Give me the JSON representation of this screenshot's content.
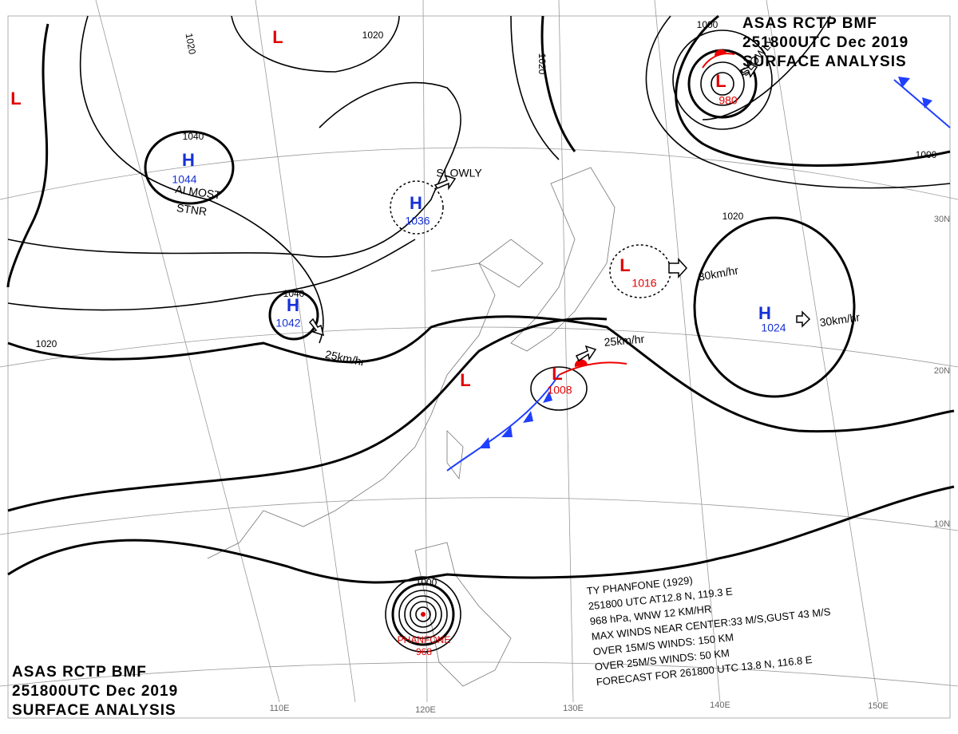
{
  "header": {
    "lines": [
      "ASAS RCTP BMF",
      "251800UTC Dec 2019",
      "SURFACE ANALYSIS"
    ]
  },
  "systems": [
    {
      "type": "H",
      "pressure": 1044
    },
    {
      "type": "L"
    },
    {
      "type": "L"
    },
    {
      "type": "H",
      "pressure": 1036
    },
    {
      "type": "H",
      "pressure": 1042
    },
    {
      "type": "L",
      "pressure": 980
    },
    {
      "type": "L",
      "pressure": 1016
    },
    {
      "type": "H",
      "pressure": 1024
    },
    {
      "type": "L",
      "pressure": 1008
    },
    {
      "type": "L"
    }
  ],
  "isobar_labels": [
    1020,
    1020,
    1040,
    1040,
    1020,
    1020,
    1000,
    1000,
    1020,
    1000
  ],
  "motion_labels": [
    "ALMOST",
    "STNR",
    "SLOWLY",
    "SLOWLY",
    "25km/hr",
    "30km/hr",
    "25km/hr",
    "30km/hr"
  ],
  "typhoon": {
    "name": "PHANFONE",
    "pressure": 968,
    "info": [
      "TY PHANFONE (1929)",
      "251800 UTC AT12.8 N, 119.3 E",
      "968 hPa, WNW 12 KM/HR",
      "MAX WINDS NEAR CENTER:33 M/S,GUST 43 M/S",
      "OVER 15M/S WINDS: 150 KM",
      "OVER 25M/S WINDS: 50 KM",
      "FORECAST FOR 261800 UTC 13.8 N, 116.8 E"
    ]
  },
  "longitudes": [
    "110E",
    "120E",
    "130E",
    "140E",
    "150E"
  ],
  "latitudes": [
    "30N",
    "20N",
    "10N"
  ]
}
